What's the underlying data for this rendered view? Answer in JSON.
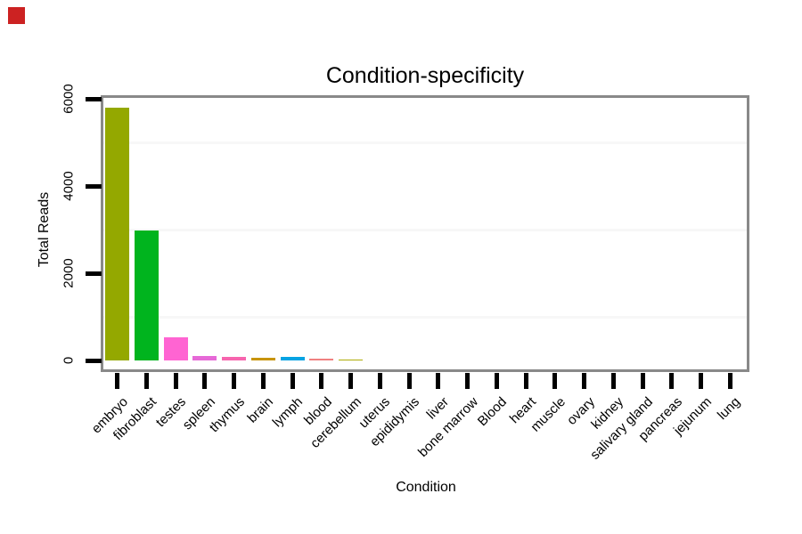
{
  "corner_marker": {
    "color": "#cc2222"
  },
  "colors": {
    "panel_border": "#898989",
    "minor_grid": "#f7f7f7",
    "axis_tick": "#000000",
    "background": "#ffffff"
  },
  "chart_data": {
    "type": "bar",
    "title": "Condition-specificity",
    "xlabel": "Condition",
    "ylabel": "Total Reads",
    "ylim": [
      0,
      6000
    ],
    "yticks": [
      0,
      2000,
      4000,
      6000
    ],
    "ytick_labels": [
      "0",
      "2000",
      "4000",
      "6000"
    ],
    "minor_gridlines": [
      1000,
      3000,
      5000
    ],
    "grid": "faint horizontal minor gridlines only",
    "legend_position": "none",
    "x_label_rotation_deg": 45,
    "categories": [
      "embryo",
      "fibroblast",
      "testes",
      "spleen",
      "thymus",
      "brain",
      "lymph",
      "blood",
      "cerebellum",
      "uterus",
      "epididymis",
      "liver",
      "bone marrow",
      "Blood",
      "heart",
      "muscle",
      "ovary",
      "kidney",
      "salivary gland",
      "pancreas",
      "jejunum",
      "lung"
    ],
    "values": [
      5790,
      2980,
      530,
      110,
      90,
      55,
      80,
      40,
      30,
      0,
      0,
      0,
      0,
      0,
      0,
      0,
      0,
      0,
      0,
      0,
      0,
      0
    ],
    "bar_colors": [
      "#94A800",
      "#00B41E",
      "#FF64D2",
      "#E669D7",
      "#F765AE",
      "#C8940A",
      "#06A3E3",
      "#F08080",
      "#AEAC08",
      null,
      null,
      null,
      null,
      null,
      null,
      null,
      null,
      null,
      null,
      null,
      null,
      null
    ]
  }
}
